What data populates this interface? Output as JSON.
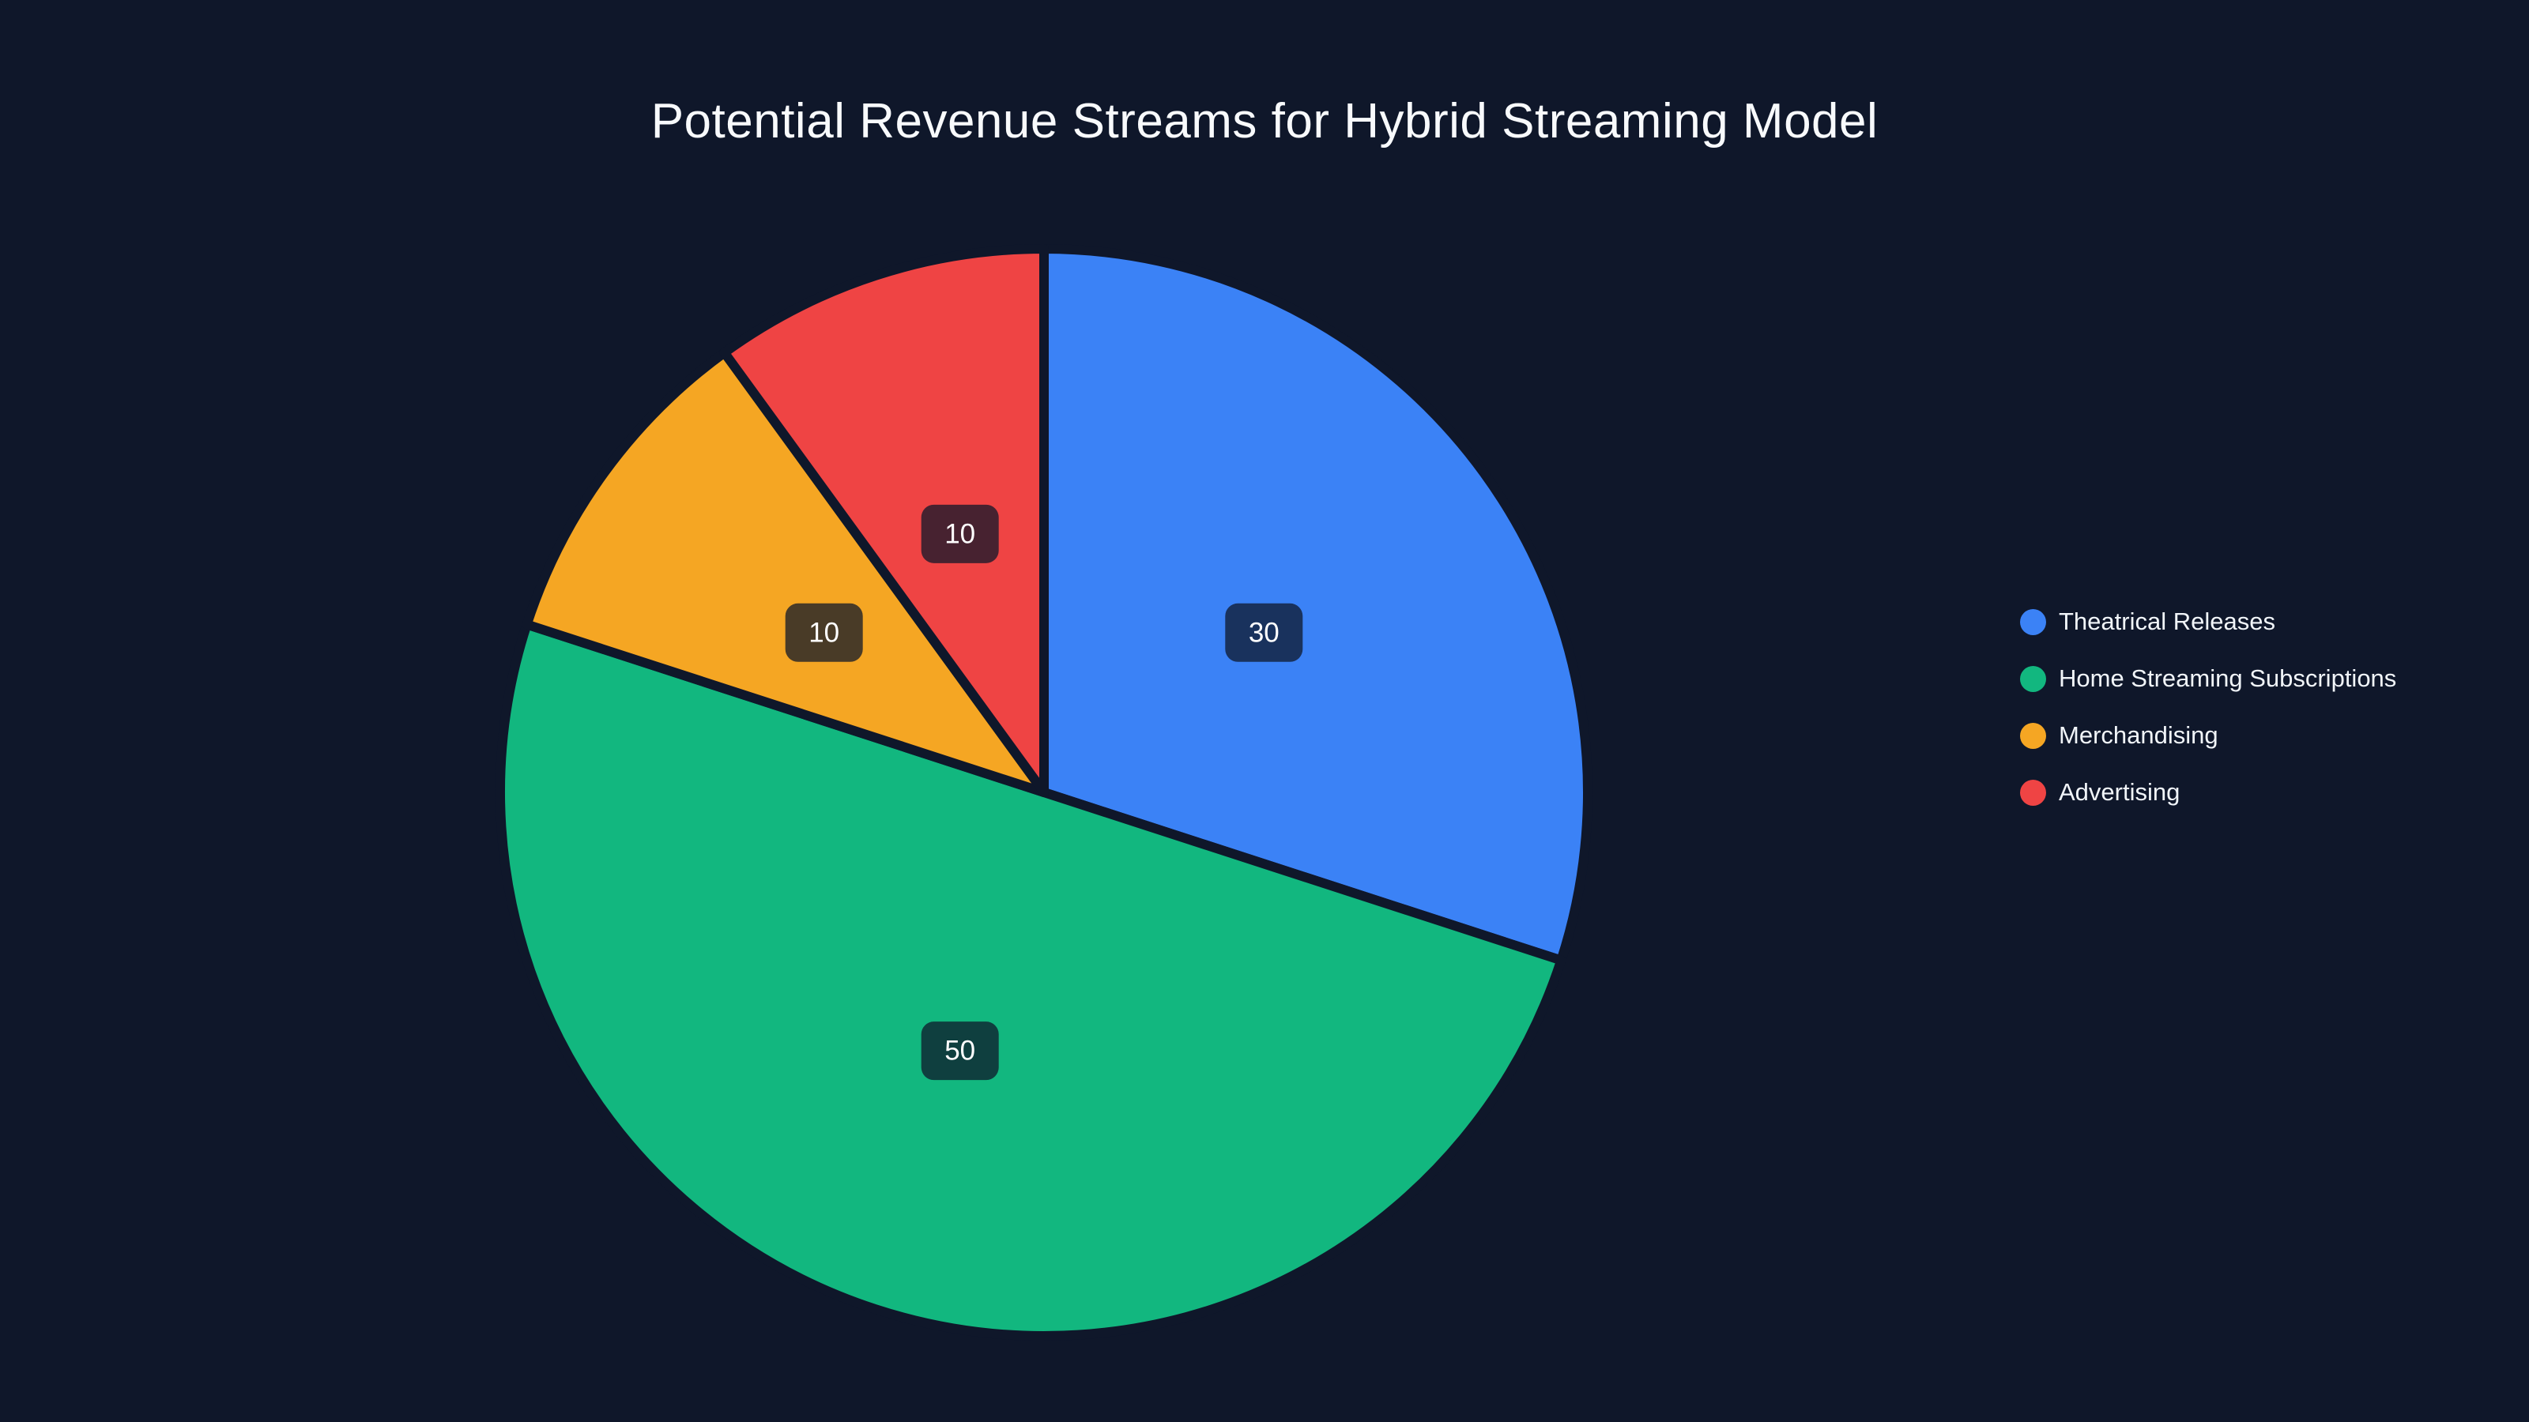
{
  "title": "Potential Revenue Streams for Hybrid Streaming Model",
  "chart_data": {
    "type": "pie",
    "title": "Potential Revenue Streams for Hybrid Streaming Model",
    "labels": [
      "Theatrical Releases",
      "Home Streaming Subscriptions",
      "Merchandising",
      "Advertising"
    ],
    "values": [
      30,
      50,
      10,
      10
    ],
    "data_labels": [
      "30",
      "50",
      "10",
      "10"
    ],
    "colors": [
      "#3b82f6",
      "#12b77f",
      "#f5a623",
      "#ef4444"
    ],
    "start_angle": "12 o'clock, clockwise",
    "legend_position": "right",
    "background_color": "#0f172a",
    "label_box_color": "rgba(15,23,42,0.75)",
    "label_text_color": "#ffffff",
    "legend_text_color": "#f1f5f9",
    "title_color": "#f8fafc"
  }
}
